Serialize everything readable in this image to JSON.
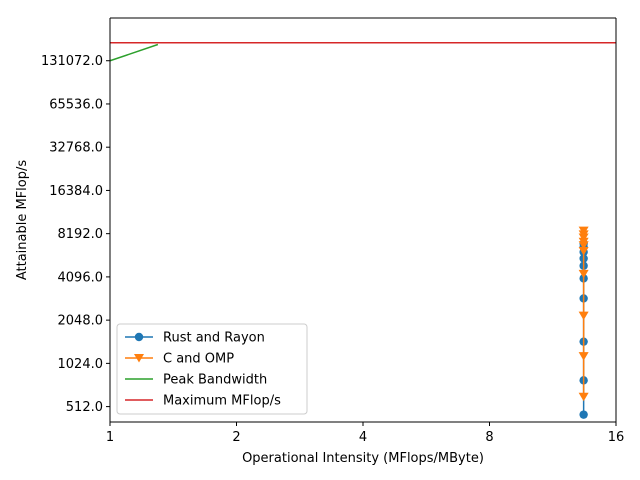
{
  "chart_data": {
    "type": "line",
    "title": "",
    "xlabel": "Operational Intensity (MFlops/MByte)",
    "ylabel": "Attainable MFlop/s",
    "x_scale": "log2",
    "y_scale": "log2",
    "xlim": [
      1,
      16
    ],
    "ylim": [
      400,
      260000
    ],
    "x_ticks": [
      1,
      2,
      4,
      8,
      16
    ],
    "x_tick_labels": [
      "1",
      "2",
      "4",
      "8",
      "16"
    ],
    "y_ticks": [
      512,
      1024,
      2048,
      4096,
      8192,
      16384,
      32768,
      65536,
      131072
    ],
    "y_tick_labels": [
      "512.0",
      "1024.0",
      "2048.0",
      "4096.0",
      "8192.0",
      "16384.0",
      "32768.0",
      "65536.0",
      "131072.0"
    ],
    "grid": false,
    "legend_position": "lower-left",
    "series": [
      {
        "name": "Rust and Rayon",
        "color": "#1f77b4",
        "marker": "circle",
        "x": [
          13.4,
          13.4,
          13.4,
          13.4,
          13.4,
          13.4,
          13.4,
          13.4,
          13.4,
          13.4
        ],
        "y": [
          450,
          780,
          1450,
          2900,
          4000,
          4900,
          5500,
          6100,
          6600,
          7000
        ]
      },
      {
        "name": "C and OMP",
        "color": "#ff7f0e",
        "marker": "triangle-down",
        "x": [
          13.4,
          13.4,
          13.4,
          13.4,
          13.4,
          13.4,
          13.4,
          13.4,
          13.4,
          13.4
        ],
        "y": [
          600,
          1150,
          2200,
          4300,
          6200,
          6800,
          7200,
          7700,
          8100,
          8600
        ]
      },
      {
        "name": "Peak Bandwidth",
        "color": "#2ca02c",
        "marker": "none",
        "x": [
          1.0,
          1.3
        ],
        "y": [
          131000,
          170000
        ]
      },
      {
        "name": "Maximum MFlop/s",
        "color": "#d62728",
        "marker": "none",
        "x": [
          1,
          16
        ],
        "y": [
          175000,
          175000
        ]
      }
    ]
  }
}
